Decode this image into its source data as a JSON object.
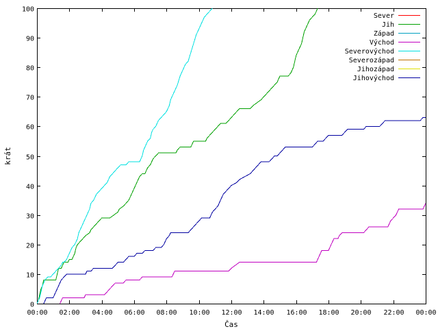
{
  "chart_data": {
    "type": "line",
    "xlabel": "Čas",
    "ylabel": "krát",
    "xlim": [
      0,
      1440
    ],
    "ylim": [
      0,
      100
    ],
    "x_unit": "minutes since 00:00",
    "x_ticks": [
      {
        "v": 0,
        "label": "00:00"
      },
      {
        "v": 120,
        "label": "02:00"
      },
      {
        "v": 240,
        "label": "04:00"
      },
      {
        "v": 360,
        "label": "06:00"
      },
      {
        "v": 480,
        "label": "08:00"
      },
      {
        "v": 600,
        "label": "10:00"
      },
      {
        "v": 720,
        "label": "12:00"
      },
      {
        "v": 840,
        "label": "14:00"
      },
      {
        "v": 960,
        "label": "16:00"
      },
      {
        "v": 1080,
        "label": "18:00"
      },
      {
        "v": 1200,
        "label": "20:00"
      },
      {
        "v": 1320,
        "label": "22:00"
      },
      {
        "v": 1440,
        "label": "00:00"
      }
    ],
    "y_ticks": [
      0,
      10,
      20,
      30,
      40,
      50,
      60,
      70,
      80,
      90,
      100
    ],
    "grid": false,
    "legend_position": "top-right",
    "series": [
      {
        "name": "Sever",
        "color": "#ff0000",
        "points": []
      },
      {
        "name": "Jih",
        "color": "#00a000",
        "points": [
          [
            0,
            0
          ],
          [
            5,
            1
          ],
          [
            10,
            3
          ],
          [
            15,
            5
          ],
          [
            20,
            6
          ],
          [
            25,
            8
          ],
          [
            70,
            8
          ],
          [
            75,
            10
          ],
          [
            80,
            12
          ],
          [
            90,
            12
          ],
          [
            95,
            13
          ],
          [
            100,
            14
          ],
          [
            115,
            14
          ],
          [
            120,
            15
          ],
          [
            130,
            15
          ],
          [
            140,
            17
          ],
          [
            145,
            19
          ],
          [
            150,
            20
          ],
          [
            160,
            21
          ],
          [
            170,
            22
          ],
          [
            180,
            23
          ],
          [
            195,
            24
          ],
          [
            200,
            25
          ],
          [
            210,
            26
          ],
          [
            220,
            27
          ],
          [
            230,
            28
          ],
          [
            240,
            29
          ],
          [
            270,
            29
          ],
          [
            285,
            30
          ],
          [
            300,
            31
          ],
          [
            305,
            32
          ],
          [
            320,
            33
          ],
          [
            330,
            34
          ],
          [
            340,
            35
          ],
          [
            350,
            37
          ],
          [
            355,
            38
          ],
          [
            360,
            39
          ],
          [
            365,
            40
          ],
          [
            375,
            42
          ],
          [
            380,
            43
          ],
          [
            390,
            44
          ],
          [
            400,
            44
          ],
          [
            410,
            46
          ],
          [
            420,
            47
          ],
          [
            430,
            49
          ],
          [
            440,
            50
          ],
          [
            450,
            51
          ],
          [
            515,
            51
          ],
          [
            520,
            52
          ],
          [
            530,
            53
          ],
          [
            570,
            53
          ],
          [
            575,
            54
          ],
          [
            580,
            55
          ],
          [
            625,
            55
          ],
          [
            630,
            56
          ],
          [
            640,
            57
          ],
          [
            650,
            58
          ],
          [
            660,
            59
          ],
          [
            670,
            60
          ],
          [
            680,
            61
          ],
          [
            700,
            61
          ],
          [
            710,
            62
          ],
          [
            720,
            63
          ],
          [
            730,
            64
          ],
          [
            740,
            65
          ],
          [
            750,
            66
          ],
          [
            790,
            66
          ],
          [
            800,
            67
          ],
          [
            815,
            68
          ],
          [
            830,
            69
          ],
          [
            840,
            70
          ],
          [
            850,
            71
          ],
          [
            860,
            72
          ],
          [
            870,
            73
          ],
          [
            880,
            74
          ],
          [
            890,
            75
          ],
          [
            895,
            76
          ],
          [
            900,
            77
          ],
          [
            930,
            77
          ],
          [
            940,
            78
          ],
          [
            945,
            79
          ],
          [
            950,
            80
          ],
          [
            955,
            82
          ],
          [
            960,
            84
          ],
          [
            970,
            86
          ],
          [
            980,
            88
          ],
          [
            990,
            92
          ],
          [
            1000,
            94
          ],
          [
            1010,
            96
          ],
          [
            1020,
            97
          ],
          [
            1030,
            98
          ],
          [
            1035,
            99
          ],
          [
            1040,
            100
          ]
        ]
      },
      {
        "name": "Západ",
        "color": "#00a0c0",
        "points": []
      },
      {
        "name": "Východ",
        "color": "#c000c0",
        "points": [
          [
            85,
            0
          ],
          [
            90,
            1
          ],
          [
            95,
            2
          ],
          [
            175,
            2
          ],
          [
            180,
            3
          ],
          [
            250,
            3
          ],
          [
            260,
            4
          ],
          [
            270,
            5
          ],
          [
            280,
            6
          ],
          [
            290,
            7
          ],
          [
            320,
            7
          ],
          [
            330,
            8
          ],
          [
            380,
            8
          ],
          [
            390,
            9
          ],
          [
            500,
            9
          ],
          [
            505,
            10
          ],
          [
            510,
            11
          ],
          [
            710,
            11
          ],
          [
            720,
            12
          ],
          [
            735,
            13
          ],
          [
            750,
            14
          ],
          [
            1035,
            14
          ],
          [
            1040,
            15
          ],
          [
            1045,
            16
          ],
          [
            1050,
            17
          ],
          [
            1055,
            18
          ],
          [
            1080,
            18
          ],
          [
            1085,
            19
          ],
          [
            1090,
            20
          ],
          [
            1095,
            21
          ],
          [
            1100,
            22
          ],
          [
            1115,
            22
          ],
          [
            1120,
            23
          ],
          [
            1130,
            24
          ],
          [
            1210,
            24
          ],
          [
            1220,
            25
          ],
          [
            1230,
            26
          ],
          [
            1300,
            26
          ],
          [
            1305,
            27
          ],
          [
            1310,
            28
          ],
          [
            1320,
            29
          ],
          [
            1330,
            30
          ],
          [
            1335,
            31
          ],
          [
            1340,
            32
          ],
          [
            1430,
            32
          ],
          [
            1435,
            33
          ],
          [
            1440,
            34
          ]
        ]
      },
      {
        "name": "Severovýchod",
        "color": "#00e0e0",
        "points": [
          [
            0,
            0
          ],
          [
            10,
            2
          ],
          [
            15,
            4
          ],
          [
            20,
            6
          ],
          [
            30,
            8
          ],
          [
            40,
            9
          ],
          [
            50,
            9
          ],
          [
            60,
            10
          ],
          [
            70,
            11
          ],
          [
            80,
            12
          ],
          [
            90,
            13
          ],
          [
            95,
            14
          ],
          [
            100,
            14
          ],
          [
            110,
            15
          ],
          [
            120,
            17
          ],
          [
            130,
            19
          ],
          [
            140,
            20
          ],
          [
            150,
            22
          ],
          [
            155,
            24
          ],
          [
            160,
            25
          ],
          [
            165,
            26
          ],
          [
            170,
            27
          ],
          [
            175,
            28
          ],
          [
            180,
            29
          ],
          [
            185,
            30
          ],
          [
            190,
            31
          ],
          [
            195,
            32
          ],
          [
            200,
            34
          ],
          [
            210,
            35
          ],
          [
            220,
            37
          ],
          [
            230,
            38
          ],
          [
            240,
            39
          ],
          [
            250,
            40
          ],
          [
            260,
            41
          ],
          [
            265,
            42
          ],
          [
            270,
            43
          ],
          [
            280,
            44
          ],
          [
            290,
            45
          ],
          [
            300,
            46
          ],
          [
            310,
            47
          ],
          [
            330,
            47
          ],
          [
            340,
            48
          ],
          [
            380,
            48
          ],
          [
            385,
            49
          ],
          [
            390,
            50
          ],
          [
            395,
            52
          ],
          [
            400,
            53
          ],
          [
            410,
            55
          ],
          [
            420,
            56
          ],
          [
            425,
            58
          ],
          [
            430,
            59
          ],
          [
            440,
            60
          ],
          [
            450,
            62
          ],
          [
            460,
            63
          ],
          [
            470,
            64
          ],
          [
            480,
            65
          ],
          [
            490,
            67
          ],
          [
            495,
            69
          ],
          [
            500,
            70
          ],
          [
            510,
            72
          ],
          [
            520,
            74
          ],
          [
            530,
            77
          ],
          [
            540,
            79
          ],
          [
            550,
            81
          ],
          [
            560,
            82
          ],
          [
            570,
            85
          ],
          [
            580,
            88
          ],
          [
            590,
            91
          ],
          [
            600,
            93
          ],
          [
            610,
            95
          ],
          [
            620,
            97
          ],
          [
            630,
            98
          ],
          [
            640,
            99
          ],
          [
            650,
            100
          ]
        ]
      },
      {
        "name": "Severozápad",
        "color": "#c07000",
        "points": []
      },
      {
        "name": "Jihozápad",
        "color": "#e0e000",
        "points": []
      },
      {
        "name": "Jihovýchod",
        "color": "#0000a0",
        "points": [
          [
            25,
            0
          ],
          [
            30,
            1
          ],
          [
            35,
            2
          ],
          [
            60,
            2
          ],
          [
            65,
            3
          ],
          [
            70,
            4
          ],
          [
            75,
            5
          ],
          [
            80,
            6
          ],
          [
            85,
            7
          ],
          [
            90,
            8
          ],
          [
            100,
            9
          ],
          [
            110,
            10
          ],
          [
            180,
            10
          ],
          [
            185,
            11
          ],
          [
            200,
            11
          ],
          [
            210,
            12
          ],
          [
            280,
            12
          ],
          [
            290,
            13
          ],
          [
            300,
            14
          ],
          [
            320,
            14
          ],
          [
            330,
            15
          ],
          [
            340,
            16
          ],
          [
            360,
            16
          ],
          [
            370,
            17
          ],
          [
            390,
            17
          ],
          [
            400,
            18
          ],
          [
            430,
            18
          ],
          [
            440,
            19
          ],
          [
            460,
            19
          ],
          [
            470,
            20
          ],
          [
            480,
            22
          ],
          [
            490,
            23
          ],
          [
            495,
            24
          ],
          [
            560,
            24
          ],
          [
            570,
            25
          ],
          [
            580,
            26
          ],
          [
            590,
            27
          ],
          [
            600,
            28
          ],
          [
            610,
            29
          ],
          [
            640,
            29
          ],
          [
            645,
            30
          ],
          [
            650,
            31
          ],
          [
            660,
            32
          ],
          [
            670,
            33
          ],
          [
            680,
            35
          ],
          [
            690,
            37
          ],
          [
            700,
            38
          ],
          [
            710,
            39
          ],
          [
            720,
            40
          ],
          [
            740,
            41
          ],
          [
            750,
            42
          ],
          [
            770,
            43
          ],
          [
            790,
            44
          ],
          [
            800,
            45
          ],
          [
            810,
            46
          ],
          [
            820,
            47
          ],
          [
            830,
            48
          ],
          [
            860,
            48
          ],
          [
            870,
            49
          ],
          [
            880,
            50
          ],
          [
            890,
            50
          ],
          [
            900,
            51
          ],
          [
            910,
            52
          ],
          [
            920,
            53
          ],
          [
            1020,
            53
          ],
          [
            1030,
            54
          ],
          [
            1040,
            55
          ],
          [
            1060,
            55
          ],
          [
            1070,
            56
          ],
          [
            1080,
            57
          ],
          [
            1130,
            57
          ],
          [
            1140,
            58
          ],
          [
            1150,
            59
          ],
          [
            1210,
            59
          ],
          [
            1220,
            60
          ],
          [
            1270,
            60
          ],
          [
            1280,
            61
          ],
          [
            1290,
            62
          ],
          [
            1420,
            62
          ],
          [
            1430,
            63
          ],
          [
            1440,
            63
          ]
        ]
      }
    ]
  }
}
